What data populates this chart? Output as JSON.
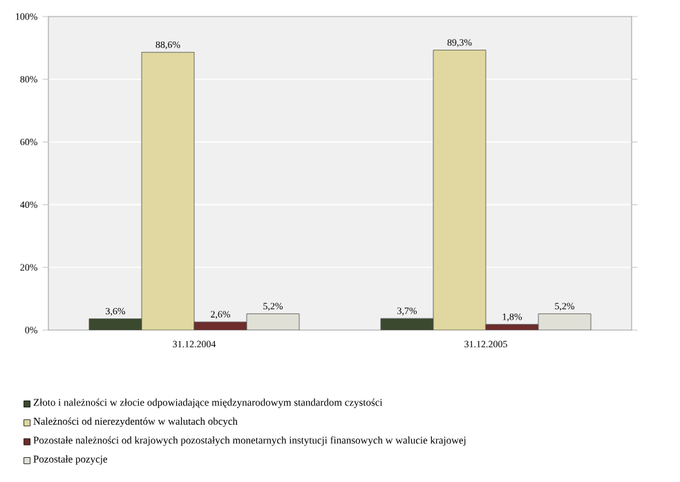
{
  "chart_data": {
    "type": "bar",
    "categories": [
      "31.12.2004",
      "31.12.2005"
    ],
    "series": [
      {
        "name": "Złoto i należności w złocie odpowiadające międzynarodowym standardom czystości",
        "color": "#3b4a2f",
        "values": [
          3.6,
          3.7
        ],
        "value_labels": [
          "3,6%",
          "3,7%"
        ]
      },
      {
        "name": "Należności od nierezydentów w walutach obcych",
        "color": "#e0d8a0",
        "values": [
          88.6,
          89.3
        ],
        "value_labels": [
          "88,6%",
          "89,3%"
        ]
      },
      {
        "name": "Pozostałe należności od krajowych pozostałych monetarnych instytucji finansowych w walucie krajowej",
        "color": "#6e2c2c",
        "values": [
          2.6,
          1.8
        ],
        "value_labels": [
          "2,6%",
          "1,8%"
        ]
      },
      {
        "name": "Pozostałe pozycje",
        "color": "#e0e0d6",
        "values": [
          5.2,
          5.2
        ],
        "value_labels": [
          "5,2%",
          "5,2%"
        ]
      }
    ],
    "ylim": [
      0,
      100
    ],
    "yticks": [
      {
        "value": 0,
        "label": "0%"
      },
      {
        "value": 20,
        "label": "20%"
      },
      {
        "value": 40,
        "label": "40%"
      },
      {
        "value": 60,
        "label": "60%"
      },
      {
        "value": 80,
        "label": "80%"
      },
      {
        "value": 100,
        "label": "100%"
      }
    ],
    "grid": "y",
    "legend": "bottom"
  }
}
